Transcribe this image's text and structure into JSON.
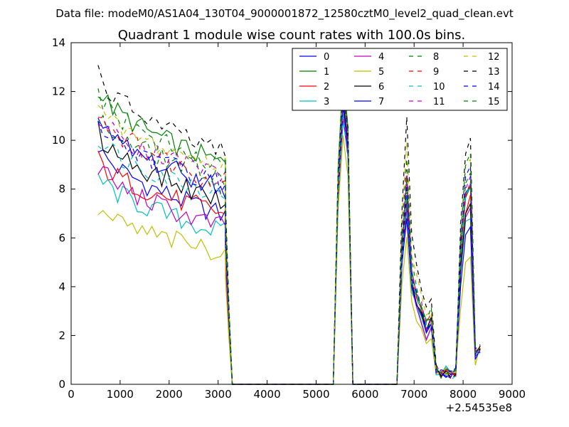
{
  "suptitle": "Data file: modeM0/AS1A04_130T04_9000001872_12580cztM0_level2_quad_clean.evt",
  "chart_data": {
    "type": "line",
    "title": "Quadrant 1 module wise count rates with 100.0s bins.",
    "xlabel": "",
    "ylabel": "",
    "x_offset_label": "+2.54535e8",
    "xlim": [
      0,
      9000
    ],
    "ylim": [
      0,
      14
    ],
    "xticks": [
      0,
      1000,
      2000,
      3000,
      4000,
      5000,
      6000,
      7000,
      8000,
      9000
    ],
    "yticks": [
      0,
      2,
      4,
      6,
      8,
      10,
      12,
      14
    ],
    "legend_position": "top-right",
    "legend_columns": 4,
    "time_blocks": [
      {
        "start": 550,
        "end": 3150,
        "step": 100
      },
      {
        "start": 3150,
        "end": 3450,
        "step": 100
      },
      {
        "start": 5350,
        "end": 5750,
        "step": 100
      },
      {
        "start": 6650,
        "end": 8350,
        "step": 100
      }
    ],
    "profile_factors": {
      "block1_taper": [
        1.0,
        0.97,
        0.95,
        0.95,
        0.95,
        0.94,
        0.93,
        0.93,
        0.92,
        0.92,
        0.91,
        0.91,
        0.9,
        0.9,
        0.89,
        0.89,
        0.88,
        0.88,
        0.88,
        0.87,
        0.87,
        0.87,
        0.86,
        0.86,
        0.86,
        0.85,
        0.85
      ],
      "block1_end_ratio": [
        0.8,
        0.35,
        0.0,
        0.0
      ],
      "block2_shape": [
        0.0,
        0.7,
        1.0,
        0.85,
        0.0
      ],
      "block3_shape": [
        0.0,
        0.55,
        0.82,
        0.45,
        0.37,
        0.3,
        0.23,
        0.27,
        0.05,
        0.03,
        0.04,
        0.02,
        0.04,
        0.4,
        0.58,
        0.62,
        0.1
      ],
      "block3_peak2": [
        0.0,
        0.0,
        0.0,
        0.0,
        0.0,
        0.0,
        0.0,
        0.0,
        0.0,
        0.0,
        0.0,
        0.0,
        0.0,
        0.0,
        0.0,
        0.0,
        0.0
      ]
    },
    "series": [
      {
        "name": "0",
        "color": "#0000ff",
        "dash": "solid",
        "start": 9.8,
        "end": 6.9,
        "peak": 11.5,
        "mid_peak": 7.5,
        "last_peak": 8.2
      },
      {
        "name": "1",
        "color": "#008000",
        "dash": "solid",
        "start": 12.2,
        "end": 9.0,
        "peak": 12.7,
        "mid_peak": 8.5,
        "last_peak": 8.0
      },
      {
        "name": "2",
        "color": "#ff0000",
        "dash": "solid",
        "start": 9.2,
        "end": 7.0,
        "peak": 11.8,
        "mid_peak": 7.6,
        "last_peak": 7.6
      },
      {
        "name": "3",
        "color": "#00bfbf",
        "dash": "solid",
        "start": 8.6,
        "end": 6.2,
        "peak": 10.8,
        "mid_peak": 7.0,
        "last_peak": 7.0
      },
      {
        "name": "4",
        "color": "#bf00bf",
        "dash": "solid",
        "start": 9.0,
        "end": 6.4,
        "peak": 11.0,
        "mid_peak": 7.2,
        "last_peak": 7.3
      },
      {
        "name": "5",
        "color": "#bfbf00",
        "dash": "solid",
        "start": 7.2,
        "end": 5.4,
        "peak": 10.2,
        "mid_peak": 6.2,
        "last_peak": 5.1
      },
      {
        "name": "6",
        "color": "#000000",
        "dash": "solid",
        "start": 10.4,
        "end": 7.5,
        "peak": 11.6,
        "mid_peak": 7.7,
        "last_peak": 7.4
      },
      {
        "name": "7",
        "color": "#0000ff",
        "dash": "solid",
        "start": 10.8,
        "end": 8.0,
        "peak": 11.4,
        "mid_peak": 7.0,
        "last_peak": 6.5
      },
      {
        "name": "8",
        "color": "#008000",
        "dash": "dashed",
        "start": 11.0,
        "end": 8.4,
        "peak": 12.2,
        "mid_peak": 8.0,
        "last_peak": 8.7
      },
      {
        "name": "9",
        "color": "#ff0000",
        "dash": "dashed",
        "start": 11.3,
        "end": 8.2,
        "peak": 11.9,
        "mid_peak": 8.3,
        "last_peak": 8.4
      },
      {
        "name": "10",
        "color": "#00bfbf",
        "dash": "dashed",
        "start": 10.2,
        "end": 7.8,
        "peak": 11.1,
        "mid_peak": 7.9,
        "last_peak": 8.3
      },
      {
        "name": "11",
        "color": "#bf00bf",
        "dash": "dashed",
        "start": 11.0,
        "end": 8.6,
        "peak": 12.0,
        "mid_peak": 8.6,
        "last_peak": 8.6
      },
      {
        "name": "12",
        "color": "#bfbf00",
        "dash": "dashed",
        "start": 11.3,
        "end": 8.9,
        "peak": 12.3,
        "mid_peak": 9.7,
        "last_peak": 9.4
      },
      {
        "name": "13",
        "color": "#000000",
        "dash": "dashed",
        "start": 12.8,
        "end": 9.4,
        "peak": 12.3,
        "mid_peak": 10.8,
        "last_peak": 9.9
      },
      {
        "name": "14",
        "color": "#0000ff",
        "dash": "dashed",
        "start": 10.8,
        "end": 8.2,
        "peak": 12.1,
        "mid_peak": 8.1,
        "last_peak": 8.9
      },
      {
        "name": "15",
        "color": "#008000",
        "dash": "dashed",
        "start": 12.0,
        "end": 8.8,
        "peak": 12.4,
        "mid_peak": 9.0,
        "last_peak": 9.4
      }
    ]
  }
}
